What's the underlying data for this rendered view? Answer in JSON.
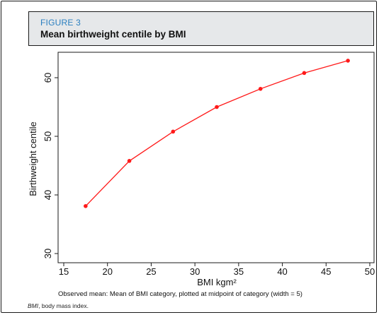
{
  "figure": {
    "label": "FIGURE 3",
    "title": "Mean birthweight centile by BMI",
    "note": "Observed mean: Mean of BMI category, plotted at midpoint of category (width = 5)",
    "footnote_abbr": "BMI",
    "footnote_text": ", body mass index."
  },
  "colors": {
    "series": "#ff1a1a",
    "header_bg": "#e6e8ea",
    "label": "#2a7fc0"
  },
  "chart_data": {
    "type": "line",
    "title": "",
    "xlabel": "BMI kgm²",
    "ylabel": "Birthweight centile",
    "xlim": [
      15,
      50
    ],
    "ylim": [
      30,
      65
    ],
    "xticks": [
      15,
      20,
      25,
      30,
      35,
      40,
      45,
      50
    ],
    "yticks": [
      30,
      40,
      50,
      60
    ],
    "grid": false,
    "legend": "none",
    "series": [
      {
        "x": [
          17.5,
          22.5,
          27.5,
          32.5,
          37.5,
          42.5,
          47.5
        ],
        "y": [
          38.1,
          45.8,
          50.8,
          55.0,
          58.1,
          60.8,
          62.9
        ]
      }
    ]
  }
}
